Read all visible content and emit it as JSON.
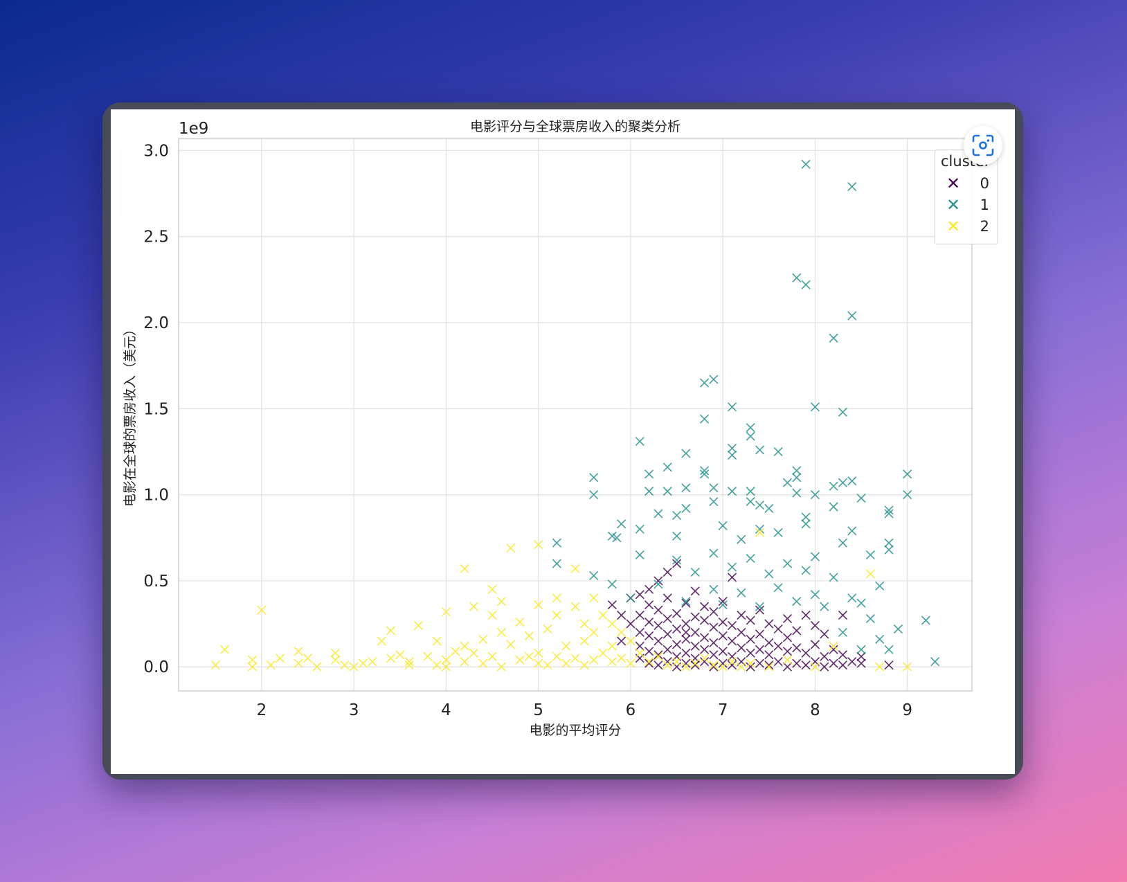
{
  "chart_data": {
    "type": "scatter",
    "title": "电影评分与全球票房收入的聚类分析",
    "xlabel": "电影的平均评分",
    "ylabel": "电影在全球的票房收入（美元）",
    "y_offset_label": "1e9",
    "xlim": [
      1.1,
      9.7
    ],
    "ylim": [
      -0.14,
      3.07
    ],
    "xticks": [
      2,
      3,
      4,
      5,
      6,
      7,
      8,
      9
    ],
    "xtick_labels": [
      "2",
      "3",
      "4",
      "5",
      "6",
      "7",
      "8",
      "9"
    ],
    "yticks": [
      0.0,
      0.5,
      1.0,
      1.5,
      2.0,
      2.5,
      3.0
    ],
    "ytick_labels": [
      "0.0",
      "0.5",
      "1.0",
      "1.5",
      "2.0",
      "2.5",
      "3.0"
    ],
    "grid": true,
    "marker": "x",
    "legend": {
      "title": "cluster",
      "placement": "top-right"
    },
    "series": [
      {
        "name": "0",
        "color": "#440154",
        "points": [
          [
            6.1,
            0.05
          ],
          [
            6.1,
            0.12
          ],
          [
            6.1,
            0.2
          ],
          [
            6.1,
            0.3
          ],
          [
            6.1,
            0.42
          ],
          [
            6.2,
            0.02
          ],
          [
            6.2,
            0.09
          ],
          [
            6.2,
            0.18
          ],
          [
            6.2,
            0.26
          ],
          [
            6.2,
            0.36
          ],
          [
            6.3,
            0.01
          ],
          [
            6.3,
            0.07
          ],
          [
            6.3,
            0.15
          ],
          [
            6.3,
            0.24
          ],
          [
            6.3,
            0.33
          ],
          [
            6.3,
            0.5
          ],
          [
            6.4,
            0.03
          ],
          [
            6.4,
            0.1
          ],
          [
            6.4,
            0.19
          ],
          [
            6.4,
            0.28
          ],
          [
            6.4,
            0.4
          ],
          [
            6.5,
            0.0
          ],
          [
            6.5,
            0.06
          ],
          [
            6.5,
            0.13
          ],
          [
            6.5,
            0.22
          ],
          [
            6.5,
            0.31
          ],
          [
            6.5,
            0.6
          ],
          [
            6.6,
            0.02
          ],
          [
            6.6,
            0.08
          ],
          [
            6.6,
            0.16
          ],
          [
            6.6,
            0.25
          ],
          [
            6.6,
            0.37
          ],
          [
            6.7,
            0.01
          ],
          [
            6.7,
            0.05
          ],
          [
            6.7,
            0.12
          ],
          [
            6.7,
            0.2
          ],
          [
            6.7,
            0.29
          ],
          [
            6.7,
            0.44
          ],
          [
            6.8,
            0.03
          ],
          [
            6.8,
            0.1
          ],
          [
            6.8,
            0.17
          ],
          [
            6.8,
            0.27
          ],
          [
            6.8,
            0.35
          ],
          [
            6.9,
            0.0
          ],
          [
            6.9,
            0.07
          ],
          [
            6.9,
            0.14
          ],
          [
            6.9,
            0.23
          ],
          [
            6.9,
            0.32
          ],
          [
            7.0,
            0.02
          ],
          [
            7.0,
            0.09
          ],
          [
            7.0,
            0.18
          ],
          [
            7.0,
            0.26
          ],
          [
            7.0,
            0.38
          ],
          [
            7.1,
            0.01
          ],
          [
            7.1,
            0.06
          ],
          [
            7.1,
            0.15
          ],
          [
            7.1,
            0.24
          ],
          [
            7.1,
            0.52
          ],
          [
            7.2,
            0.03
          ],
          [
            7.2,
            0.11
          ],
          [
            7.2,
            0.2
          ],
          [
            7.2,
            0.3
          ],
          [
            7.3,
            0.0
          ],
          [
            7.3,
            0.08
          ],
          [
            7.3,
            0.16
          ],
          [
            7.3,
            0.27
          ],
          [
            7.4,
            0.02
          ],
          [
            7.4,
            0.1
          ],
          [
            7.4,
            0.19
          ],
          [
            7.4,
            0.33
          ],
          [
            7.5,
            0.01
          ],
          [
            7.5,
            0.07
          ],
          [
            7.5,
            0.14
          ],
          [
            7.5,
            0.25
          ],
          [
            7.6,
            0.03
          ],
          [
            7.6,
            0.12
          ],
          [
            7.6,
            0.22
          ],
          [
            7.7,
            0.0
          ],
          [
            7.7,
            0.09
          ],
          [
            7.7,
            0.17
          ],
          [
            7.7,
            0.28
          ],
          [
            7.8,
            0.02
          ],
          [
            7.8,
            0.11
          ],
          [
            7.8,
            0.21
          ],
          [
            7.9,
            0.01
          ],
          [
            7.9,
            0.08
          ],
          [
            7.9,
            0.3
          ],
          [
            8.0,
            0.03
          ],
          [
            8.0,
            0.13
          ],
          [
            8.0,
            0.24
          ],
          [
            8.1,
            0.0
          ],
          [
            8.1,
            0.06
          ],
          [
            8.1,
            0.19
          ],
          [
            8.2,
            0.02
          ],
          [
            8.2,
            0.1
          ],
          [
            8.3,
            0.01
          ],
          [
            8.3,
            0.07
          ],
          [
            8.3,
            0.3
          ],
          [
            8.4,
            0.03
          ],
          [
            8.5,
            0.02
          ],
          [
            8.5,
            0.06
          ],
          [
            8.8,
            0.01
          ],
          [
            5.9,
            0.3
          ],
          [
            5.9,
            0.15
          ],
          [
            5.8,
            0.36
          ],
          [
            6.0,
            0.25
          ],
          [
            6.0,
            0.4
          ],
          [
            6.2,
            0.45
          ],
          [
            6.4,
            0.55
          ],
          [
            6.6,
            0.2
          ]
        ]
      },
      {
        "name": "1",
        "color": "#21918c",
        "points": [
          [
            7.9,
            2.92
          ],
          [
            8.4,
            2.79
          ],
          [
            7.8,
            2.26
          ],
          [
            7.9,
            2.22
          ],
          [
            8.4,
            2.04
          ],
          [
            8.2,
            1.91
          ],
          [
            6.8,
            1.65
          ],
          [
            6.9,
            1.67
          ],
          [
            6.8,
            1.44
          ],
          [
            7.1,
            1.51
          ],
          [
            8.0,
            1.51
          ],
          [
            8.3,
            1.48
          ],
          [
            7.3,
            1.39
          ],
          [
            7.3,
            1.34
          ],
          [
            6.1,
            1.31
          ],
          [
            7.1,
            1.27
          ],
          [
            7.1,
            1.23
          ],
          [
            7.4,
            1.26
          ],
          [
            7.6,
            1.25
          ],
          [
            6.6,
            1.24
          ],
          [
            6.4,
            1.16
          ],
          [
            6.2,
            1.12
          ],
          [
            6.8,
            1.14
          ],
          [
            6.8,
            1.12
          ],
          [
            5.6,
            1.1
          ],
          [
            7.8,
            1.14
          ],
          [
            7.8,
            1.1
          ],
          [
            7.7,
            1.07
          ],
          [
            8.3,
            1.07
          ],
          [
            8.4,
            1.08
          ],
          [
            8.2,
            1.05
          ],
          [
            9.0,
            1.12
          ],
          [
            9.0,
            1.0
          ],
          [
            5.6,
            1.0
          ],
          [
            6.2,
            1.02
          ],
          [
            6.4,
            1.02
          ],
          [
            6.6,
            1.04
          ],
          [
            6.9,
            1.04
          ],
          [
            7.1,
            1.02
          ],
          [
            7.3,
            1.02
          ],
          [
            7.8,
            1.01
          ],
          [
            8.0,
            1.0
          ],
          [
            8.5,
            0.98
          ],
          [
            6.9,
            0.96
          ],
          [
            7.3,
            0.96
          ],
          [
            7.4,
            0.94
          ],
          [
            7.5,
            0.92
          ],
          [
            8.2,
            0.93
          ],
          [
            8.8,
            0.91
          ],
          [
            8.8,
            0.89
          ],
          [
            6.3,
            0.89
          ],
          [
            6.5,
            0.88
          ],
          [
            6.6,
            0.92
          ],
          [
            7.9,
            0.87
          ],
          [
            7.9,
            0.83
          ],
          [
            5.9,
            0.83
          ],
          [
            6.1,
            0.8
          ],
          [
            7.0,
            0.82
          ],
          [
            7.4,
            0.8
          ],
          [
            8.4,
            0.79
          ],
          [
            5.8,
            0.76
          ],
          [
            5.85,
            0.75
          ],
          [
            6.5,
            0.76
          ],
          [
            7.2,
            0.74
          ],
          [
            7.6,
            0.78
          ],
          [
            8.3,
            0.72
          ],
          [
            8.8,
            0.72
          ],
          [
            8.8,
            0.68
          ],
          [
            5.2,
            0.72
          ],
          [
            5.2,
            0.6
          ],
          [
            6.1,
            0.65
          ],
          [
            6.5,
            0.62
          ],
          [
            6.9,
            0.66
          ],
          [
            7.3,
            0.63
          ],
          [
            7.7,
            0.6
          ],
          [
            8.0,
            0.64
          ],
          [
            8.6,
            0.65
          ],
          [
            5.6,
            0.53
          ],
          [
            6.7,
            0.55
          ],
          [
            7.1,
            0.58
          ],
          [
            7.5,
            0.54
          ],
          [
            7.9,
            0.56
          ],
          [
            8.2,
            0.52
          ],
          [
            8.7,
            0.47
          ],
          [
            6.3,
            0.48
          ],
          [
            6.9,
            0.45
          ],
          [
            7.2,
            0.43
          ],
          [
            7.6,
            0.46
          ],
          [
            8.0,
            0.42
          ],
          [
            8.4,
            0.4
          ],
          [
            6.6,
            0.38
          ],
          [
            7.0,
            0.36
          ],
          [
            7.4,
            0.35
          ],
          [
            7.8,
            0.38
          ],
          [
            8.1,
            0.35
          ],
          [
            8.5,
            0.37
          ],
          [
            9.2,
            0.27
          ],
          [
            8.9,
            0.22
          ],
          [
            8.7,
            0.16
          ],
          [
            9.3,
            0.03
          ],
          [
            8.8,
            0.1
          ],
          [
            8.5,
            0.1
          ],
          [
            5.8,
            0.48
          ],
          [
            6.0,
            0.4
          ],
          [
            8.3,
            0.2
          ],
          [
            8.6,
            0.28
          ]
        ]
      },
      {
        "name": "2",
        "color": "#fde725",
        "points": [
          [
            1.5,
            0.01
          ],
          [
            1.6,
            0.1
          ],
          [
            1.9,
            0.04
          ],
          [
            1.9,
            0.0
          ],
          [
            2.0,
            0.33
          ],
          [
            2.1,
            0.01
          ],
          [
            2.2,
            0.05
          ],
          [
            2.4,
            0.09
          ],
          [
            2.4,
            0.02
          ],
          [
            2.5,
            0.05
          ],
          [
            2.6,
            0.0
          ],
          [
            2.8,
            0.08
          ],
          [
            2.8,
            0.04
          ],
          [
            2.9,
            0.01
          ],
          [
            3.0,
            0.0
          ],
          [
            3.1,
            0.02
          ],
          [
            3.2,
            0.03
          ],
          [
            3.3,
            0.15
          ],
          [
            3.4,
            0.21
          ],
          [
            3.4,
            0.05
          ],
          [
            3.5,
            0.07
          ],
          [
            3.6,
            0.03
          ],
          [
            3.7,
            0.24
          ],
          [
            3.8,
            0.06
          ],
          [
            3.9,
            0.15
          ],
          [
            4.0,
            0.32
          ],
          [
            4.0,
            0.04
          ],
          [
            4.1,
            0.09
          ],
          [
            4.2,
            0.57
          ],
          [
            4.2,
            0.12
          ],
          [
            4.3,
            0.35
          ],
          [
            4.4,
            0.16
          ],
          [
            4.5,
            0.45
          ],
          [
            4.5,
            0.3
          ],
          [
            4.6,
            0.38
          ],
          [
            4.6,
            0.2
          ],
          [
            4.7,
            0.69
          ],
          [
            4.7,
            0.13
          ],
          [
            4.8,
            0.26
          ],
          [
            4.9,
            0.18
          ],
          [
            5.0,
            0.71
          ],
          [
            5.0,
            0.36
          ],
          [
            5.0,
            0.08
          ],
          [
            5.1,
            0.22
          ],
          [
            5.2,
            0.4
          ],
          [
            5.2,
            0.3
          ],
          [
            5.3,
            0.12
          ],
          [
            5.4,
            0.35
          ],
          [
            5.4,
            0.05
          ],
          [
            5.4,
            0.57
          ],
          [
            5.5,
            0.25
          ],
          [
            5.5,
            0.15
          ],
          [
            5.6,
            0.4
          ],
          [
            5.6,
            0.2
          ],
          [
            5.7,
            0.3
          ],
          [
            5.7,
            0.08
          ],
          [
            5.8,
            0.25
          ],
          [
            5.8,
            0.12
          ],
          [
            5.9,
            0.2
          ],
          [
            5.9,
            0.05
          ],
          [
            6.0,
            0.15
          ],
          [
            6.0,
            0.02
          ],
          [
            6.1,
            0.08
          ],
          [
            6.2,
            0.03
          ],
          [
            6.3,
            0.06
          ],
          [
            6.4,
            0.01
          ],
          [
            6.5,
            0.03
          ],
          [
            6.6,
            0.0
          ],
          [
            6.7,
            0.02
          ],
          [
            6.8,
            0.05
          ],
          [
            6.9,
            0.01
          ],
          [
            7.0,
            0.0
          ],
          [
            7.1,
            0.03
          ],
          [
            7.2,
            0.0
          ],
          [
            7.3,
            0.02
          ],
          [
            7.4,
            0.78
          ],
          [
            7.5,
            0.0
          ],
          [
            7.7,
            0.04
          ],
          [
            8.0,
            0.0
          ],
          [
            8.2,
            0.12
          ],
          [
            8.6,
            0.54
          ],
          [
            8.7,
            0.0
          ],
          [
            9.0,
            0.0
          ],
          [
            4.0,
            0.0
          ],
          [
            4.4,
            0.02
          ],
          [
            4.8,
            0.04
          ],
          [
            5.1,
            0.01
          ],
          [
            5.3,
            0.02
          ],
          [
            5.6,
            0.04
          ],
          [
            3.6,
            0.01
          ],
          [
            3.9,
            0.01
          ],
          [
            4.2,
            0.03
          ],
          [
            4.6,
            0.0
          ],
          [
            5.0,
            0.02
          ],
          [
            5.8,
            0.03
          ],
          [
            5.5,
            0.01
          ],
          [
            5.2,
            0.06
          ],
          [
            4.9,
            0.06
          ],
          [
            4.5,
            0.06
          ],
          [
            4.3,
            0.08
          ]
        ]
      }
    ]
  },
  "ui": {
    "lens_icon": "scan-lens-icon"
  }
}
